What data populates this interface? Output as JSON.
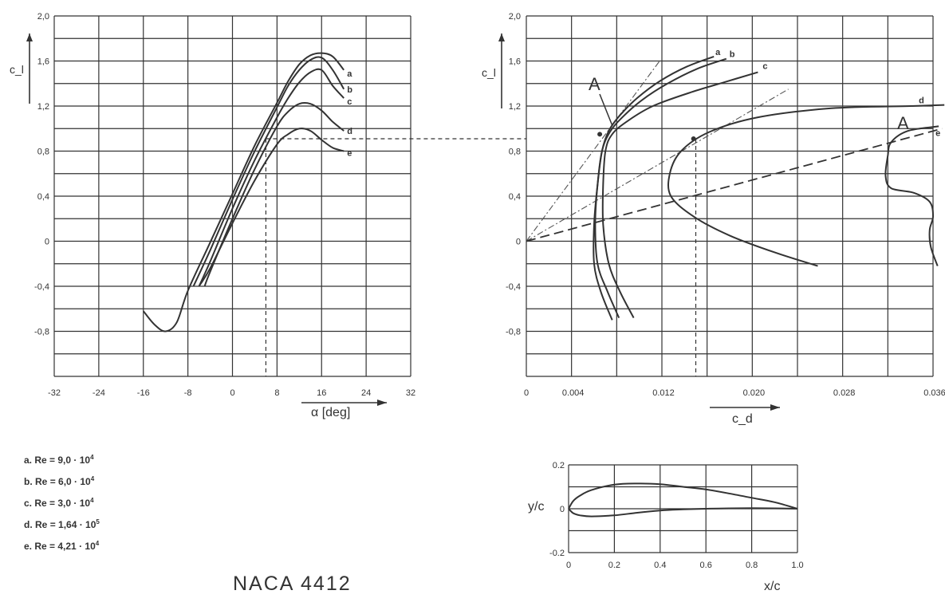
{
  "title": "NACA 4412",
  "legend": [
    {
      "key": "a.",
      "label": "Re = 9,0 · 10",
      "exp": "4"
    },
    {
      "key": "b.",
      "label": "Re = 6,0 · 10",
      "exp": "4"
    },
    {
      "key": "c.",
      "label": "Re = 3,0 · 10",
      "exp": "4"
    },
    {
      "key": "d.",
      "label": "Re = 1,64 · 10",
      "exp": "5"
    },
    {
      "key": "e.",
      "label": "Re = 4,21 · 10",
      "exp": "4"
    }
  ],
  "chart_data": [
    {
      "type": "line",
      "xlabel": "α [deg]",
      "ylabel": "c_l",
      "xlim": [
        -32,
        32
      ],
      "ylim": [
        -1.2,
        2.0
      ],
      "xticks": [
        "-32",
        "-24",
        "-16",
        "-8",
        "0",
        "8",
        "16",
        "24",
        "32"
      ],
      "yticks": [
        "2,0",
        "1,6",
        "1,2",
        "0,8",
        "0,4",
        "0",
        "-0,4",
        "-0,8"
      ],
      "grid": true,
      "series": [
        {
          "name": "a",
          "x": [
            -16,
            -14,
            -12,
            -10,
            -8,
            -4,
            0,
            4,
            8,
            10,
            12,
            14,
            16,
            18,
            20
          ],
          "y": [
            -0.62,
            -0.74,
            -0.8,
            -0.72,
            -0.44,
            -0.01,
            0.42,
            0.85,
            1.23,
            1.42,
            1.57,
            1.65,
            1.67,
            1.64,
            1.52
          ]
        },
        {
          "name": "b",
          "x": [
            -7,
            -4,
            0,
            4,
            8,
            10,
            12,
            14,
            16,
            18,
            20
          ],
          "y": [
            -0.4,
            -0.08,
            0.37,
            0.8,
            1.19,
            1.38,
            1.52,
            1.61,
            1.63,
            1.52,
            1.35
          ]
        },
        {
          "name": "c",
          "x": [
            -6,
            -4,
            0,
            4,
            8,
            10,
            12,
            14,
            16,
            18,
            20
          ],
          "y": [
            -0.4,
            -0.18,
            0.29,
            0.72,
            1.1,
            1.27,
            1.41,
            1.5,
            1.52,
            1.38,
            1.27
          ]
        },
        {
          "name": "d",
          "x": [
            -5,
            -4,
            0,
            4,
            8,
            10,
            12,
            14,
            16,
            18,
            20
          ],
          "y": [
            -0.4,
            -0.27,
            0.2,
            0.64,
            1.02,
            1.15,
            1.22,
            1.22,
            1.16,
            1.06,
            0.98
          ]
        },
        {
          "name": "e",
          "x": [
            -6,
            -4,
            0,
            4,
            8,
            10,
            12,
            14,
            16,
            18,
            20
          ],
          "y": [
            -0.4,
            -0.24,
            0.16,
            0.54,
            0.86,
            0.95,
            1.0,
            0.98,
            0.9,
            0.83,
            0.8
          ]
        }
      ],
      "annotations": [
        {
          "type": "dashed-guide",
          "x": 6,
          "y": 0.91
        }
      ]
    },
    {
      "type": "line",
      "xlabel": "c_d",
      "ylabel": "c_l",
      "xlim": [
        0,
        0.036
      ],
      "ylim": [
        -1.2,
        2.0
      ],
      "xticks": [
        "0",
        "0.004",
        "0.012",
        "0.020",
        "0.028",
        "0.036"
      ],
      "yticks": [
        "2,0",
        "1,6",
        "1,2",
        "0,8",
        "0,4",
        "0",
        "-0,4",
        "-0,8"
      ],
      "grid": true,
      "series": [
        {
          "name": "a",
          "x": [
            0.0076,
            0.0066,
            0.006,
            0.006,
            0.0063,
            0.0067,
            0.0073,
            0.0083,
            0.0098,
            0.0118,
            0.0142,
            0.0166
          ],
          "y": [
            -0.7,
            -0.45,
            -0.2,
            0.15,
            0.5,
            0.8,
            0.98,
            1.12,
            1.27,
            1.42,
            1.55,
            1.64
          ]
        },
        {
          "name": "b",
          "x": [
            0.0082,
            0.0072,
            0.0063,
            0.0061,
            0.0063,
            0.0067,
            0.0074,
            0.0085,
            0.0102,
            0.0125,
            0.0151,
            0.0177
          ],
          "y": [
            -0.68,
            -0.45,
            -0.2,
            0.15,
            0.5,
            0.8,
            0.97,
            1.1,
            1.25,
            1.4,
            1.53,
            1.62
          ]
        },
        {
          "name": "c",
          "x": [
            0.0095,
            0.0083,
            0.0073,
            0.0068,
            0.0068,
            0.007,
            0.0076,
            0.009,
            0.0112,
            0.0145,
            0.0178,
            0.0205
          ],
          "y": [
            -0.68,
            -0.45,
            -0.2,
            0.15,
            0.5,
            0.8,
            0.95,
            1.07,
            1.2,
            1.32,
            1.42,
            1.5
          ]
        },
        {
          "name": "d",
          "x": [
            0.0258,
            0.022,
            0.018,
            0.0148,
            0.0128,
            0.0127,
            0.0137,
            0.0162,
            0.0205,
            0.027,
            0.034,
            0.037
          ],
          "y": [
            -0.22,
            -0.1,
            0.05,
            0.22,
            0.4,
            0.6,
            0.8,
            0.97,
            1.1,
            1.18,
            1.2,
            1.21
          ]
        },
        {
          "name": "e",
          "x": [
            0.0364,
            0.0358,
            0.0357,
            0.036,
            0.0357,
            0.0343,
            0.0323,
            0.0318,
            0.032,
            0.0323,
            0.0338,
            0.0365
          ],
          "y": [
            -0.22,
            -0.05,
            0.1,
            0.22,
            0.35,
            0.43,
            0.47,
            0.58,
            0.76,
            0.88,
            0.98,
            1.02
          ]
        }
      ],
      "annotations": [
        {
          "type": "label",
          "text": "A"
        },
        {
          "type": "label",
          "text": "A"
        },
        {
          "type": "dashed-guide",
          "x": 0.015,
          "y": 0.91
        }
      ]
    },
    {
      "type": "line",
      "xlabel": "x/c",
      "ylabel": "y/c",
      "xlim": [
        0,
        1.0
      ],
      "ylim": [
        -0.2,
        0.2
      ],
      "xticks": [
        "0",
        "0.2",
        "0.4",
        "0.6",
        "0.8",
        "1.0"
      ],
      "yticks": [
        "0.2",
        "0",
        "-0.2"
      ],
      "grid": true,
      "series": [
        {
          "name": "upper",
          "x": [
            0,
            0.02,
            0.05,
            0.1,
            0.2,
            0.3,
            0.4,
            0.5,
            0.6,
            0.7,
            0.8,
            0.9,
            1.0
          ],
          "y": [
            0,
            0.035,
            0.06,
            0.085,
            0.11,
            0.115,
            0.112,
            0.1,
            0.088,
            0.07,
            0.05,
            0.03,
            0.0
          ]
        },
        {
          "name": "lower",
          "x": [
            0,
            0.02,
            0.05,
            0.1,
            0.2,
            0.3,
            0.4,
            0.5,
            0.6,
            0.7,
            0.8,
            0.9,
            1.0
          ],
          "y": [
            0,
            -0.02,
            -0.03,
            -0.035,
            -0.03,
            -0.018,
            -0.008,
            -0.003,
            0.0,
            0.002,
            0.003,
            0.002,
            0.0
          ]
        }
      ]
    }
  ]
}
